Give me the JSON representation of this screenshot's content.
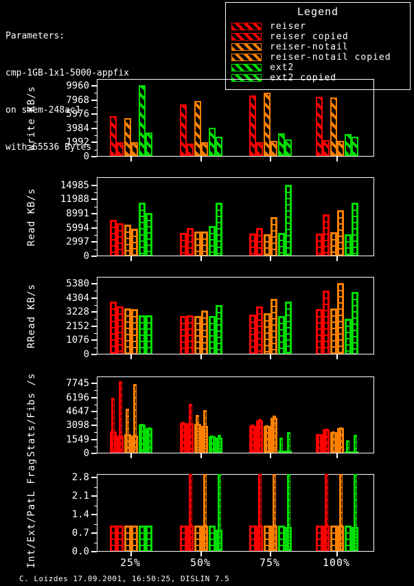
{
  "parameters": {
    "title": "Parameters:",
    "lines": [
      "cmp-1GB-1x1-5000-appfix",
      "on smem-248ac1",
      "with 65536 Bytes"
    ]
  },
  "legend": {
    "title": "Legend",
    "items": [
      {
        "label": "reiser",
        "color": "#ff0000"
      },
      {
        "label": "reiser copied",
        "color": "#ff0000"
      },
      {
        "label": "reiser-notail",
        "color": "#ff8000"
      },
      {
        "label": "reiser-notail copied",
        "color": "#ff8000"
      },
      {
        "label": "ext2",
        "color": "#00dd00"
      },
      {
        "label": "ext2 copied",
        "color": "#00dd00"
      }
    ]
  },
  "footer": {
    "credit": "C. Loizdes 17.09.2001, 16:50:25, DISLIN 7.5"
  },
  "colors": {
    "background": "#000000",
    "frame": "#ffffff",
    "text": "#ffffff",
    "reiser": "#ff0000",
    "reiser_notail": "#ff8000",
    "ext2": "#00dd00"
  },
  "chart_data": [
    {
      "type": "bar",
      "ylabel": "Write KB/s",
      "hatch": "diagonal",
      "categories": [
        "25%",
        "50%",
        "75%",
        "100%"
      ],
      "ytick_labels": [
        "0",
        "1992",
        "3984",
        "5976",
        "7968",
        "9960"
      ],
      "axis_max": 10930,
      "series": [
        {
          "name": "reiser",
          "color": "#ff0000",
          "values": [
            5600,
            7280,
            8500,
            8330
          ]
        },
        {
          "name": "reiser copied",
          "color": "#ff0000",
          "values": [
            1960,
            1780,
            1930,
            2190
          ]
        },
        {
          "name": "reiser-notail",
          "color": "#ff8000",
          "values": [
            5350,
            7700,
            8880,
            8180
          ]
        },
        {
          "name": "reiser-notail copied",
          "color": "#ff8000",
          "values": [
            1930,
            1930,
            2090,
            2090
          ]
        },
        {
          "name": "ext2",
          "color": "#00dd00",
          "values": [
            9960,
            4010,
            3220,
            3120
          ]
        },
        {
          "name": "ext2 copied",
          "color": "#00dd00",
          "values": [
            3290,
            2740,
            2320,
            2670
          ]
        }
      ]
    },
    {
      "type": "bar",
      "ylabel": "Read KB/s",
      "hatch": "brick",
      "categories": [
        "25%",
        "50%",
        "75%",
        "100%"
      ],
      "ytick_labels": [
        "0",
        "2997",
        "5994",
        "8991",
        "11988",
        "14985"
      ],
      "axis_max": 16700,
      "series": [
        {
          "name": "reiser",
          "color": "#ff0000",
          "values": [
            7500,
            4760,
            4700,
            4700
          ]
        },
        {
          "name": "reiser copied",
          "color": "#ff0000",
          "values": [
            6800,
            5880,
            5880,
            8700
          ]
        },
        {
          "name": "reiser-notail",
          "color": "#ff8000",
          "values": [
            6500,
            5010,
            4500,
            4960
          ]
        },
        {
          "name": "reiser-notail copied",
          "color": "#ff8000",
          "values": [
            5700,
            5010,
            8180,
            9600
          ]
        },
        {
          "name": "ext2",
          "color": "#00dd00",
          "values": [
            11200,
            6190,
            4760,
            4500
          ]
        },
        {
          "name": "ext2 copied",
          "color": "#00dd00",
          "values": [
            8950,
            11150,
            14900,
            11250
          ]
        }
      ]
    },
    {
      "type": "bar",
      "ylabel": "RRead KB/s",
      "hatch": "brick",
      "categories": [
        "25%",
        "50%",
        "75%",
        "100%"
      ],
      "ytick_labels": [
        "0",
        "1076",
        "2152",
        "3228",
        "4304",
        "5380"
      ],
      "axis_max": 5900,
      "series": [
        {
          "name": "reiser",
          "color": "#ff0000",
          "values": [
            3980,
            2880,
            2990,
            3370
          ]
        },
        {
          "name": "reiser copied",
          "color": "#ff0000",
          "values": [
            3600,
            2930,
            3600,
            4800
          ]
        },
        {
          "name": "reiser-notail",
          "color": "#ff8000",
          "values": [
            3460,
            2880,
            3060,
            3460
          ]
        },
        {
          "name": "reiser-notail copied",
          "color": "#ff8000",
          "values": [
            3400,
            3280,
            4190,
            5380
          ]
        },
        {
          "name": "ext2",
          "color": "#00dd00",
          "values": [
            2930,
            2850,
            2850,
            2670
          ]
        },
        {
          "name": "ext2 copied",
          "color": "#00dd00",
          "values": [
            2900,
            3720,
            3950,
            4680
          ]
        }
      ]
    },
    {
      "type": "bar",
      "ylabel": "Stats/Fibs /s",
      "hatch": "brick",
      "categories": [
        "25%",
        "50%",
        "75%",
        "100%"
      ],
      "ytick_labels": [
        "0",
        "1549",
        "3098",
        "4647",
        "6196",
        "7745"
      ],
      "axis_max": 8530,
      "series": [
        {
          "name": "reiser",
          "color": "#ff0000",
          "values": [
            2350,
            3300,
            2960,
            2050
          ],
          "peaks": [
            6100,
            3450,
            3150,
            2090
          ]
        },
        {
          "name": "reiser copied",
          "color": "#ff0000",
          "values": [
            1930,
            3300,
            3600,
            2600
          ],
          "peaks": [
            7900,
            5400,
            3730,
            2690
          ]
        },
        {
          "name": "reiser-notail",
          "color": "#ff8000",
          "values": [
            2060,
            3200,
            3000,
            2300
          ],
          "peaks": [
            4880,
            4220,
            3080,
            2350
          ]
        },
        {
          "name": "reiser-notail copied",
          "color": "#ff8000",
          "values": [
            1880,
            3000,
            3900,
            2750
          ],
          "peaks": [
            7600,
            4750,
            4120,
            2820
          ]
        },
        {
          "name": "ext2",
          "color": "#00dd00",
          "values": [
            3100,
            1850,
            200,
            150
          ],
          "peaks": [
            3180,
            1900,
            1640,
            1380
          ]
        },
        {
          "name": "ext2 copied",
          "color": "#00dd00",
          "values": [
            2750,
            1700,
            200,
            150
          ],
          "peaks": [
            2840,
            2000,
            2300,
            1980
          ]
        }
      ]
    },
    {
      "type": "bar",
      "ylabel": "Int/Ext/PatL Frag",
      "hatch": "brick",
      "categories": [
        "25%",
        "50%",
        "75%",
        "100%"
      ],
      "ytick_labels": [
        "0.0",
        "0.7",
        "1.4",
        "2.1",
        "2.8"
      ],
      "axis_max": 2.93,
      "series": [
        {
          "name": "reiser",
          "color": "#ff0000",
          "values": [
            0.95,
            0.95,
            0.95,
            0.95
          ],
          "peaks": [
            null,
            null,
            null,
            null
          ]
        },
        {
          "name": "reiser copied",
          "color": "#ff0000",
          "values": [
            0.95,
            0.95,
            0.95,
            0.95
          ],
          "peaks": [
            null,
            2.9,
            2.9,
            2.9
          ]
        },
        {
          "name": "reiser-notail",
          "color": "#ff8000",
          "values": [
            0.95,
            0.95,
            0.95,
            0.95
          ],
          "peaks": [
            null,
            null,
            null,
            null
          ]
        },
        {
          "name": "reiser-notail copied",
          "color": "#ff8000",
          "values": [
            0.95,
            0.95,
            0.95,
            0.95
          ],
          "peaks": [
            null,
            2.9,
            2.9,
            2.9
          ]
        },
        {
          "name": "ext2",
          "color": "#00dd00",
          "values": [
            0.95,
            0.95,
            0.95,
            0.95
          ],
          "peaks": [
            null,
            null,
            null,
            null
          ]
        },
        {
          "name": "ext2 copied",
          "color": "#00dd00",
          "values": [
            0.95,
            0.8,
            0.9,
            0.9
          ],
          "peaks": [
            null,
            2.9,
            2.9,
            2.9
          ]
        }
      ]
    }
  ]
}
